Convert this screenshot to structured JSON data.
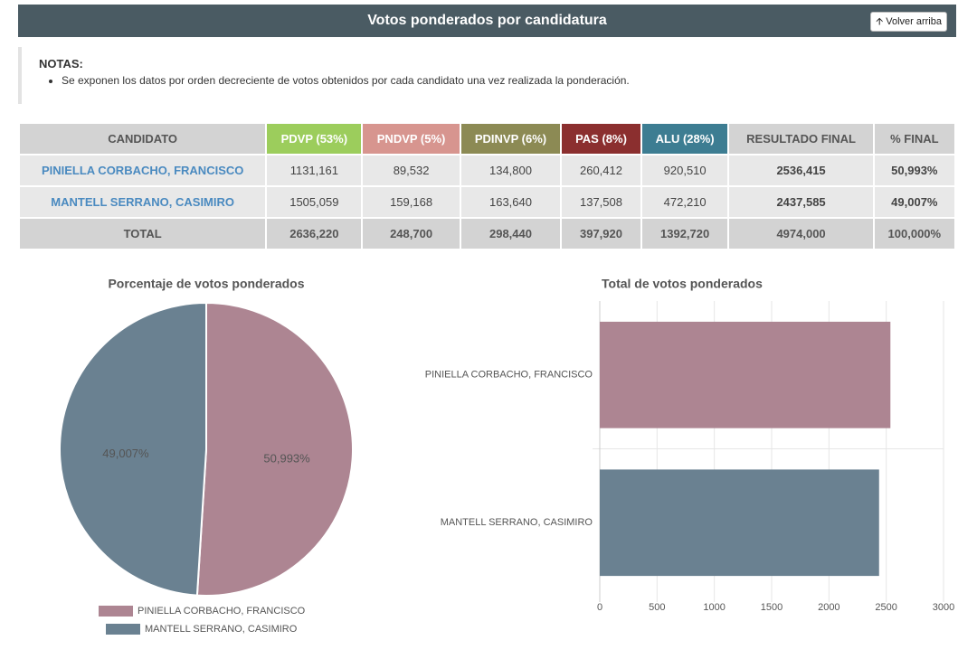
{
  "header": {
    "title": "Votos ponderados por candidatura",
    "button": "Volver arriba"
  },
  "notes": {
    "title": "NOTAS:",
    "items": [
      "Se exponen los datos por orden decreciente de votos obtenidos por cada candidato una vez realizada la ponderación."
    ]
  },
  "table": {
    "columns": [
      "CANDIDATO",
      "PDVP (53%)",
      "PNDVP (5%)",
      "PDINVP (6%)",
      "PAS (8%)",
      "ALU (28%)",
      "RESULTADO FINAL",
      "% FINAL"
    ],
    "rows": [
      [
        "PINIELLA CORBACHO, FRANCISCO",
        "1131,161",
        "89,532",
        "134,800",
        "260,412",
        "920,510",
        "2536,415",
        "50,993%"
      ],
      [
        "MANTELL SERRANO, CASIMIRO",
        "1505,059",
        "159,168",
        "163,640",
        "137,508",
        "472,210",
        "2437,585",
        "49,007%"
      ],
      [
        "TOTAL",
        "2636,220",
        "248,700",
        "298,440",
        "397,920",
        "1392,720",
        "4974,000",
        "100,000%"
      ]
    ]
  },
  "chart_data": [
    {
      "type": "pie",
      "title": "Porcentaje de votos ponderados",
      "categories": [
        "PINIELLA CORBACHO, FRANCISCO",
        "MANTELL SERRANO, CASIMIRO"
      ],
      "values": [
        50.993,
        49.007
      ],
      "value_labels": [
        "50,993%",
        "49,007%"
      ],
      "colors": [
        "#ad8592",
        "#6a8191"
      ],
      "legend": "bottom"
    },
    {
      "type": "hbar",
      "title": "Total de votos ponderados",
      "categories": [
        "PINIELLA CORBACHO, FRANCISCO",
        "MANTELL SERRANO, CASIMIRO"
      ],
      "values": [
        2536.415,
        2437.585
      ],
      "colors": [
        "#ad8592",
        "#6a8191"
      ],
      "xlim": [
        0,
        3000
      ],
      "xticks": [
        0,
        500,
        1000,
        1500,
        2000,
        2500,
        3000
      ],
      "grid": true
    }
  ]
}
